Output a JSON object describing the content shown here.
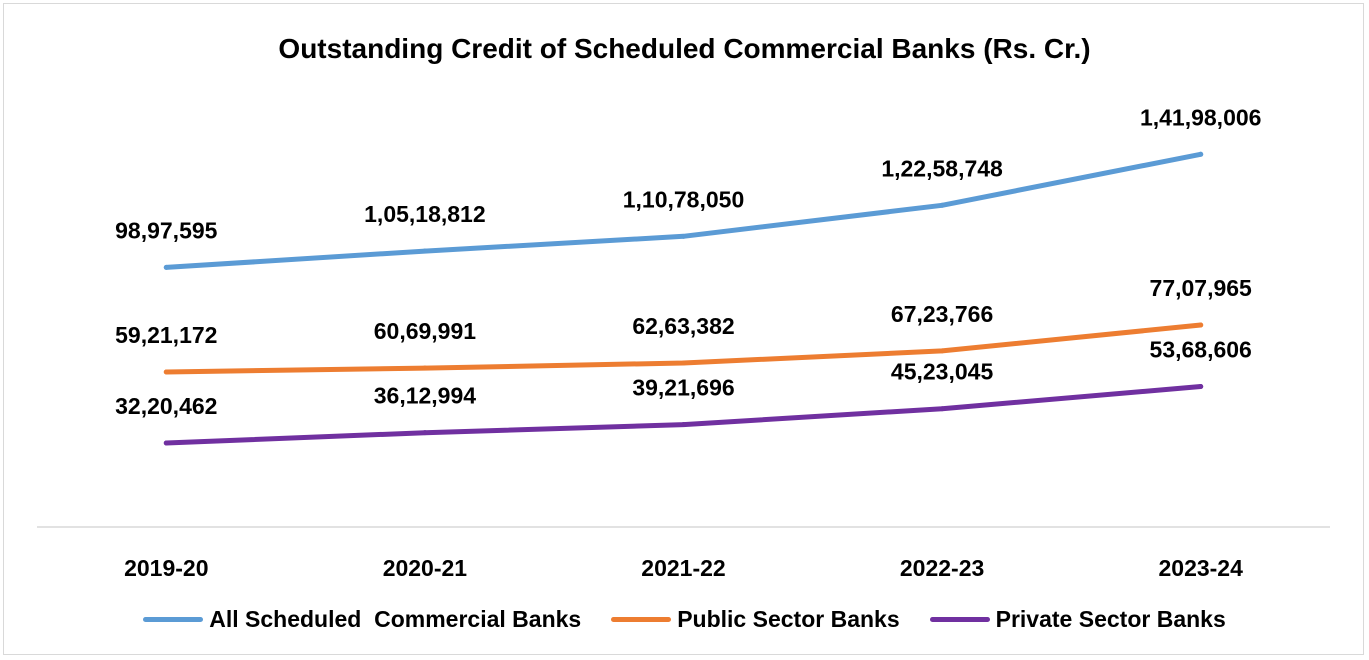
{
  "chart_data": {
    "type": "line",
    "title": "Outstanding Credit of Scheduled Commercial Banks (Rs. Cr.)",
    "xlabel": "",
    "ylabel": "",
    "categories": [
      "2019-20",
      "2020-21",
      "2021-22",
      "2022-23",
      "2023-24"
    ],
    "series": [
      {
        "name": "All Scheduled  Commercial Banks",
        "color": "#5b9bd5",
        "values": [
          9897595,
          10518812,
          11078050,
          12258748,
          14198006
        ],
        "labels": [
          "98,97,595",
          "1,05,18,812",
          "1,10,78,050",
          "1,22,58,748",
          "1,41,98,006"
        ]
      },
      {
        "name": "Public Sector Banks",
        "color": "#ed7d31",
        "values": [
          5921172,
          6069991,
          6263382,
          6723766,
          7707965
        ],
        "labels": [
          "59,21,172",
          "60,69,991",
          "62,63,382",
          "67,23,766",
          "77,07,965"
        ]
      },
      {
        "name": "Private Sector Banks",
        "color": "#7030a0",
        "values": [
          3220462,
          3612994,
          3921696,
          4523045,
          5368606
        ],
        "labels": [
          "32,20,462",
          "36,12,994",
          "39,21,696",
          "45,23,045",
          "53,68,606"
        ]
      }
    ],
    "grid": false,
    "legend": "bottom"
  }
}
